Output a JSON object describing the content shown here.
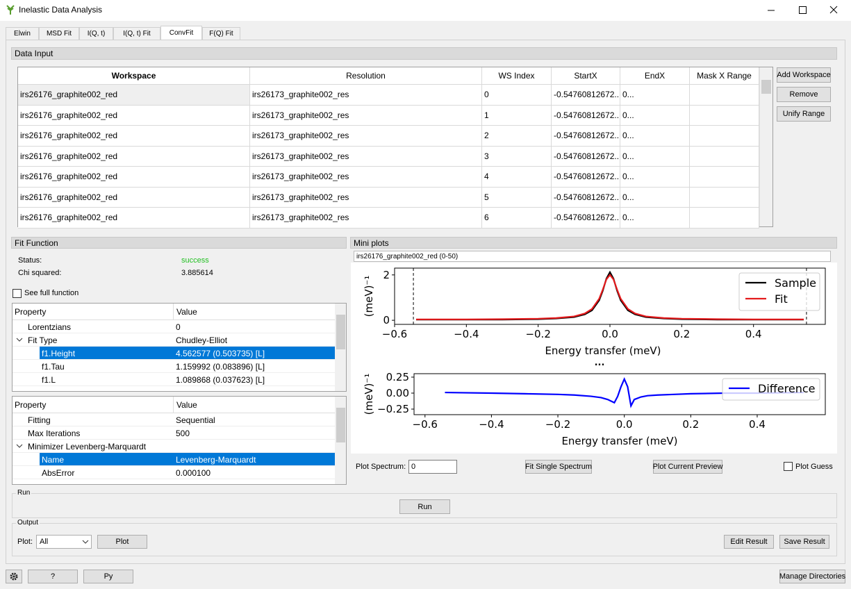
{
  "window": {
    "title": "Inelastic Data Analysis"
  },
  "tabs": [
    "Elwin",
    "MSD Fit",
    "I(Q, t)",
    "I(Q, t) Fit",
    "ConvFit",
    "F(Q) Fit"
  ],
  "data_input": {
    "title": "Data Input",
    "columns": [
      "Workspace",
      "Resolution",
      "WS Index",
      "StartX",
      "EndX",
      "Mask X Range"
    ],
    "rows": [
      [
        "irs26176_graphite002_red",
        "irs26173_graphite002_res",
        0,
        "-0.54760812672...",
        "0..."
      ],
      [
        "irs26176_graphite002_red",
        "irs26173_graphite002_res",
        1,
        "-0.54760812672...",
        "0..."
      ],
      [
        "irs26176_graphite002_red",
        "irs26173_graphite002_res",
        2,
        "-0.54760812672...",
        "0..."
      ],
      [
        "irs26176_graphite002_red",
        "irs26173_graphite002_res",
        3,
        "-0.54760812672...",
        "0..."
      ],
      [
        "irs26176_graphite002_red",
        "irs26173_graphite002_res",
        4,
        "-0.54760812672...",
        "0..."
      ],
      [
        "irs26176_graphite002_red",
        "irs26173_graphite002_res",
        5,
        "-0.54760812672...",
        "0..."
      ],
      [
        "irs26176_graphite002_red",
        "irs26173_graphite002_res",
        6,
        "-0.54760812672...",
        "0..."
      ]
    ],
    "buttons": [
      "Add Workspace",
      "Remove",
      "Unify Range"
    ]
  },
  "fit_function": {
    "title": "Fit Function",
    "status_label": "Status:",
    "status": "success",
    "chi_label": "Chi squared:",
    "chi": "3.885614",
    "see_full": "See full function",
    "functions": {
      "header": [
        "Property",
        "Value"
      ],
      "rows": [
        {
          "name": "Lorentzians",
          "value": "0"
        },
        {
          "name": "Fit Type",
          "value": "Chudley-Elliot",
          "children": [
            {
              "name": "f1.Height",
              "value": "4.562577 (0.503735) [L]"
            },
            {
              "name": "f1.Tau",
              "value": "1.159992 (0.083896) [L]"
            },
            {
              "name": "f1.L",
              "value": "1.089868 (0.037623) [L]"
            }
          ]
        }
      ]
    },
    "settings": {
      "header": [
        "Property",
        "Value"
      ],
      "rows": [
        {
          "name": "Fitting",
          "value": "Sequential"
        },
        {
          "name": "Max Iterations",
          "value": "500"
        },
        {
          "name": "Minimizer Levenberg-Marquardt",
          "children": [
            {
              "name": "Name",
              "value": "Levenberg-Marquardt"
            },
            {
              "name": "AbsError",
              "value": "0.000100"
            }
          ]
        }
      ]
    }
  },
  "mini_plots": {
    "title": "Mini plots",
    "spectrum_select": "irs26176_graphite002_red (0-50)",
    "separator": "...",
    "plot_spectrum_label": "Plot Spectrum:",
    "plot_spectrum": 0,
    "buttons": [
      "Fit Single Spectrum",
      "Plot Current Preview"
    ],
    "plot_guess": "Plot Guess",
    "plots": [
      {
        "type": "line",
        "xlabel": "Energy transfer (meV)",
        "ylabel": "(meV)⁻¹",
        "xlim": [
          -0.6,
          0.6
        ],
        "ylim": [
          -0.18,
          2.3
        ],
        "xticks": [
          {
            "value": -0.6,
            "label": "−0.6"
          },
          {
            "value": -0.4,
            "label": "−0.4"
          },
          {
            "value": -0.2,
            "label": "−0.2"
          },
          {
            "value": 0,
            "label": "0.0"
          },
          0.2,
          0.4
        ],
        "yticks": [
          0,
          2
        ],
        "range_lines": [
          -0.5476,
          0.5476
        ],
        "legend": "upper right",
        "x": [
          -0.54,
          -0.4,
          -0.3,
          -0.2,
          -0.15,
          -0.1,
          -0.07,
          -0.05,
          -0.03,
          -0.02,
          -0.01,
          0,
          0.01,
          0.02,
          0.03,
          0.05,
          0.07,
          0.1,
          0.15,
          0.2,
          0.3,
          0.4,
          0.54
        ],
        "series": [
          {
            "name": "Sample",
            "color": "#000000",
            "values": [
              0.03,
              0.03,
              0.03,
              0.05,
              0.08,
              0.14,
              0.26,
              0.44,
              0.88,
              1.3,
              1.83,
              2.12,
              1.83,
              1.3,
              0.88,
              0.44,
              0.26,
              0.14,
              0.08,
              0.05,
              0.03,
              0.03,
              0.03
            ]
          },
          {
            "name": "Fit",
            "color": "#e41a1c",
            "values": [
              0.04,
              0.04,
              0.05,
              0.07,
              0.1,
              0.17,
              0.3,
              0.5,
              0.95,
              1.35,
              1.8,
              2.0,
              1.8,
              1.35,
              0.95,
              0.5,
              0.3,
              0.17,
              0.1,
              0.07,
              0.05,
              0.04,
              0.04
            ]
          }
        ]
      },
      {
        "type": "line",
        "xlabel": "Energy transfer (meV)",
        "ylabel": "(meV)⁻¹",
        "xlim": [
          -0.633,
          0.605
        ],
        "ylim": [
          -0.337,
          0.304
        ],
        "xticks": [
          {
            "value": -0.6,
            "label": "−0.6"
          },
          {
            "value": -0.4,
            "label": "−0.4"
          },
          {
            "value": -0.2,
            "label": "−0.2"
          },
          {
            "value": 0,
            "label": "0.0"
          },
          0.2,
          0.4
        ],
        "yticks": [
          0.25,
          {
            "value": 0,
            "label": "0.00"
          },
          {
            "value": -0.25,
            "label": "−0.25"
          }
        ],
        "legend": "upper right",
        "x": [
          -0.54,
          -0.4,
          -0.3,
          -0.2,
          -0.15,
          -0.1,
          -0.07,
          -0.05,
          -0.03,
          -0.02,
          -0.01,
          0,
          0.01,
          0.02,
          0.03,
          0.05,
          0.07,
          0.1,
          0.15,
          0.2,
          0.3,
          0.4,
          0.54
        ],
        "series": [
          {
            "name": "Difference",
            "color": "#0000ff",
            "values": [
              0.01,
              0,
              -0.01,
              -0.02,
              -0.03,
              -0.05,
              -0.07,
              -0.1,
              -0.15,
              -0.05,
              0.1,
              0.22,
              0.1,
              -0.2,
              -0.1,
              -0.06,
              -0.04,
              -0.03,
              -0.02,
              -0.01,
              0,
              0,
              0.01
            ]
          }
        ]
      }
    ]
  },
  "run": {
    "title": "Run",
    "button": "Run"
  },
  "output": {
    "title": "Output",
    "plot_label": "Plot:",
    "plot_select": "All",
    "buttons": [
      "Plot",
      "Edit Result",
      "Save Result"
    ]
  },
  "footer": {
    "buttons": [
      "?",
      "Py",
      "Manage Directories"
    ]
  }
}
